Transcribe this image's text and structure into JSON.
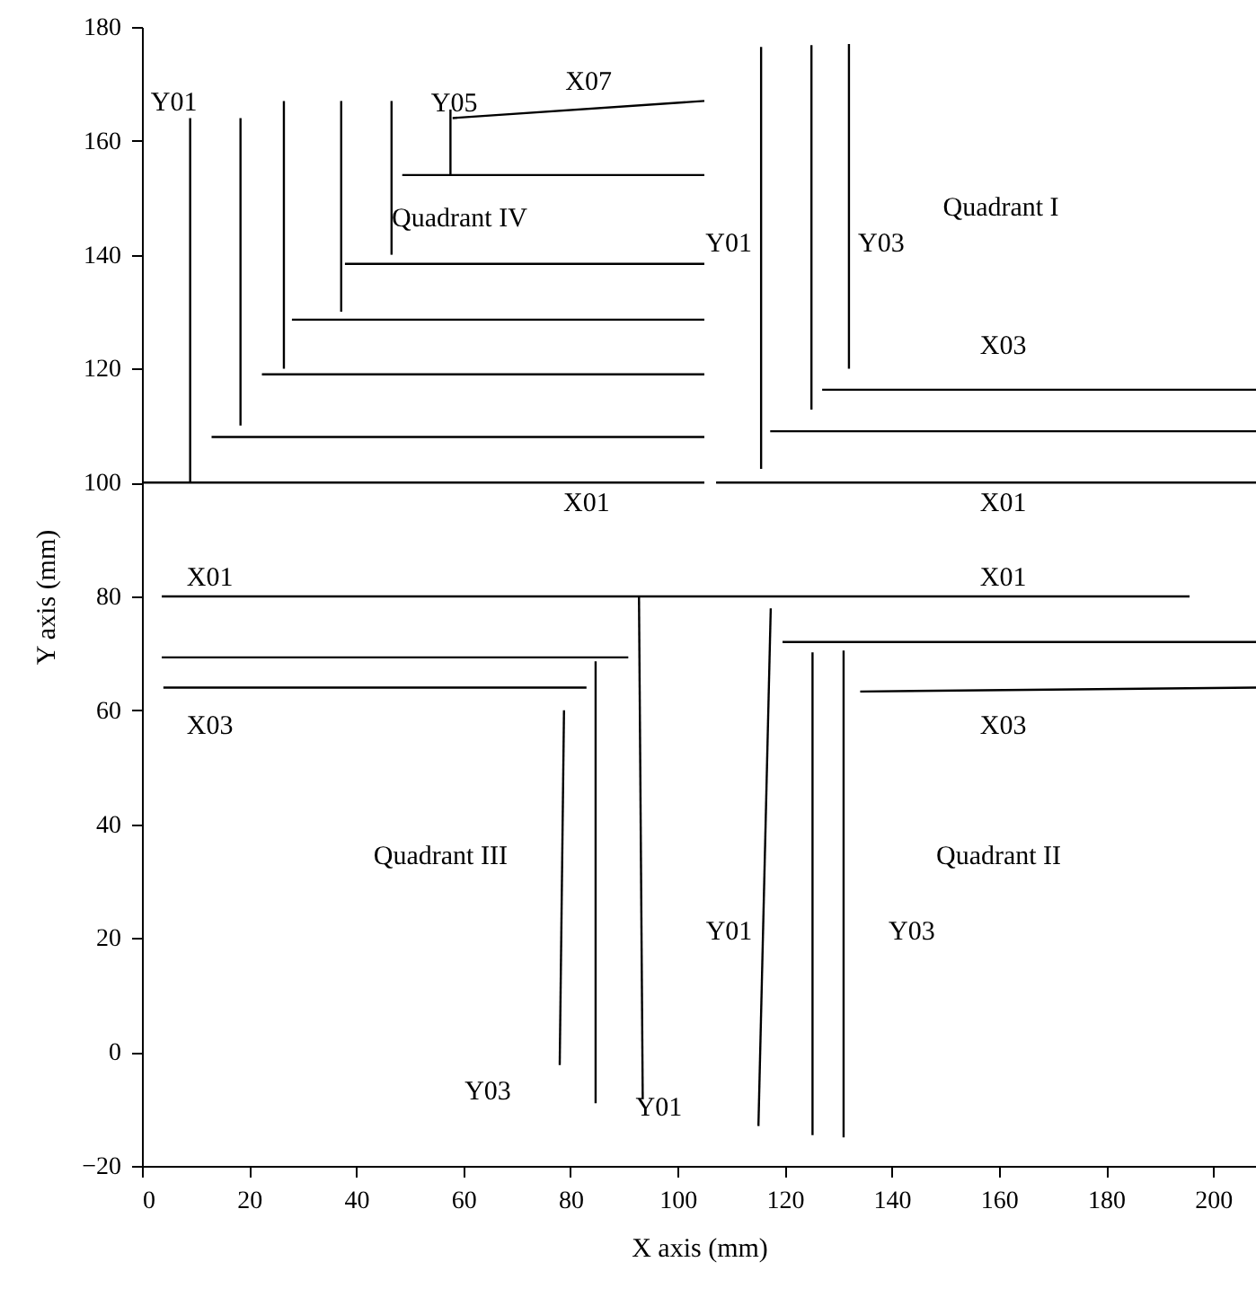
{
  "chart_data": {
    "type": "line",
    "xlabel": "X axis (mm)",
    "ylabel": "Y axis (mm)",
    "xlim": [
      0,
      208
    ],
    "ylim": [
      -20,
      180
    ],
    "xticks": [
      0,
      20,
      40,
      60,
      80,
      100,
      120,
      140,
      160,
      180,
      200
    ],
    "yticks": [
      -20,
      0,
      20,
      40,
      60,
      80,
      100,
      120,
      140,
      160,
      180
    ],
    "grid": false,
    "marker": "none",
    "line_style": "solid",
    "series": [
      {
        "color": "#000000",
        "x": [
          9,
          9
        ],
        "values": [
          100,
          164
        ]
      },
      {
        "color": "#000000",
        "x": [
          18.4,
          18.4
        ],
        "values": [
          110,
          164
        ]
      },
      {
        "color": "#000000",
        "x": [
          26.5,
          26.5
        ],
        "values": [
          120,
          167
        ]
      },
      {
        "color": "#000000",
        "x": [
          37.2,
          37.2
        ],
        "values": [
          130,
          167
        ]
      },
      {
        "color": "#000000",
        "x": [
          46.6,
          46.6
        ],
        "values": [
          140,
          167
        ]
      },
      {
        "color": "#000000",
        "x": [
          57.6,
          57.6
        ],
        "values": [
          154,
          165.5
        ]
      },
      {
        "color": "#000000",
        "x": [
          0,
          105
        ],
        "values": [
          100,
          100
        ]
      },
      {
        "color": "#000000",
        "x": [
          13,
          105
        ],
        "values": [
          108,
          108
        ]
      },
      {
        "color": "#000000",
        "x": [
          22.4,
          105
        ],
        "values": [
          119,
          119
        ]
      },
      {
        "color": "#000000",
        "x": [
          28,
          105
        ],
        "values": [
          128.6,
          128.6
        ]
      },
      {
        "color": "#000000",
        "x": [
          37.9,
          105
        ],
        "values": [
          138.4,
          138.4
        ]
      },
      {
        "color": "#000000",
        "x": [
          48.6,
          105
        ],
        "values": [
          154,
          154
        ]
      },
      {
        "color": "#000000",
        "x": [
          58,
          105
        ],
        "values": [
          164,
          167
        ]
      },
      {
        "color": "#000000",
        "x": [
          115.6,
          115.6
        ],
        "values": [
          102.4,
          176.5
        ]
      },
      {
        "color": "#000000",
        "x": [
          125,
          125
        ],
        "values": [
          112.8,
          176.8
        ]
      },
      {
        "color": "#000000",
        "x": [
          132,
          132
        ],
        "values": [
          120,
          177
        ]
      },
      {
        "color": "#000000",
        "x": [
          127,
          208
        ],
        "values": [
          116.3,
          116.3
        ]
      },
      {
        "color": "#000000",
        "x": [
          117.3,
          208
        ],
        "values": [
          109,
          109
        ]
      },
      {
        "color": "#000000",
        "x": [
          107.2,
          208
        ],
        "values": [
          100,
          100
        ]
      },
      {
        "color": "#000000",
        "x": [
          3.7,
          195.6
        ],
        "values": [
          80,
          80
        ]
      },
      {
        "color": "#000000",
        "x": [
          3.7,
          90.8
        ],
        "values": [
          69.3,
          69.3
        ]
      },
      {
        "color": "#000000",
        "x": [
          4,
          83
        ],
        "values": [
          64,
          64
        ]
      },
      {
        "color": "#000000",
        "x": [
          92.8,
          93.5
        ],
        "values": [
          80,
          -8.3
        ]
      },
      {
        "color": "#000000",
        "x": [
          84.7,
          84.7
        ],
        "values": [
          68.6,
          -9
        ]
      },
      {
        "color": "#000000",
        "x": [
          78.8,
          78
        ],
        "values": [
          60,
          -2.3
        ]
      },
      {
        "color": "#000000",
        "x": [
          117.4,
          115.1
        ],
        "values": [
          77.9,
          -13
        ]
      },
      {
        "color": "#000000",
        "x": [
          125.2,
          125.2
        ],
        "values": [
          70.2,
          -14.6
        ]
      },
      {
        "color": "#000000",
        "x": [
          131,
          131
        ],
        "values": [
          70.5,
          -15
        ]
      },
      {
        "color": "#000000",
        "x": [
          119.6,
          208
        ],
        "values": [
          72,
          72
        ]
      },
      {
        "color": "#000000",
        "x": [
          134.1,
          208
        ],
        "values": [
          63.3,
          64
        ]
      }
    ],
    "annotations": [
      {
        "text": "Y01",
        "x": 9,
        "y": 164
      },
      {
        "text": "Y05",
        "x": 58.3,
        "y": 166.8
      },
      {
        "text": "X07",
        "x": 83.4,
        "y": 166.8
      },
      "Quadrant IV",
      {
        "text": "Y01",
        "x": 115.6,
        "y": 142.1
      },
      {
        "text": "Y03",
        "x": 132,
        "y": 142.1
      },
      "Quadrant I",
      {
        "text": "X03",
        "x": 160.8,
        "y": 116.3
      },
      {
        "text": "X01",
        "x": 83,
        "y": 100
      },
      {
        "text": "X01",
        "x": 160.8,
        "y": 100
      },
      {
        "text": "X01",
        "x": 12.7,
        "y": 80
      },
      {
        "text": "X01",
        "x": 160.8,
        "y": 80
      },
      {
        "text": "X03",
        "x": 12.7,
        "y": 64
      },
      {
        "text": "X03",
        "x": 160.8,
        "y": 63.5
      },
      "Quadrant III",
      "Quadrant II",
      {
        "text": "Y01",
        "x": 116,
        "y": 21.3
      },
      {
        "text": "Y03",
        "x": 131,
        "y": 21.3
      },
      {
        "text": "Y03",
        "x": 78,
        "y": -2.3
      },
      {
        "text": "Y01",
        "x": 93.5,
        "y": -8.3
      }
    ]
  }
}
